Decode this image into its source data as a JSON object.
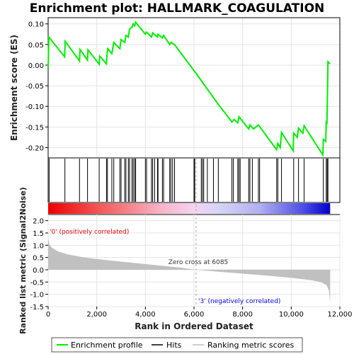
{
  "chart_data": {
    "type": "line",
    "title": "Enrichment plot: HALLMARK_COAGULATION",
    "xlabel": "Rank in Ordered Dataset",
    "xlim": [
      0,
      12000
    ],
    "x_ticks": [
      0,
      2000,
      4000,
      6000,
      8000,
      10000,
      12000
    ],
    "x_tick_labels": [
      "0",
      "2,000",
      "4,000",
      "6,000",
      "8,000",
      "10,000",
      "12,000"
    ],
    "es_panel": {
      "ylabel": "Enrichment score (ES)",
      "ylim": [
        -0.225,
        0.115
      ],
      "y_ticks": [
        -0.2,
        -0.15,
        -0.1,
        -0.05,
        0.0,
        0.05,
        0.1
      ],
      "y_tick_labels": [
        "-0.20",
        "-0.15",
        "-0.10",
        "-0.05",
        "0.00",
        "0.05",
        "0.10"
      ],
      "grid": true,
      "series": [
        {
          "name": "Enrichment profile",
          "color": "#00ee00",
          "points": [
            [
              0,
              -0.005
            ],
            [
              30,
              0.068
            ],
            [
              680,
              0.02
            ],
            [
              700,
              0.058
            ],
            [
              1290,
              0.01
            ],
            [
              1310,
              0.038
            ],
            [
              1620,
              0.012
            ],
            [
              1640,
              0.037
            ],
            [
              2100,
              0.002
            ],
            [
              2120,
              0.022
            ],
            [
              2400,
              0.003
            ],
            [
              2420,
              0.025
            ],
            [
              2450,
              0.04
            ],
            [
              2620,
              0.028
            ],
            [
              2700,
              0.055
            ],
            [
              2950,
              0.04
            ],
            [
              3000,
              0.062
            ],
            [
              3150,
              0.055
            ],
            [
              3200,
              0.072
            ],
            [
              3300,
              0.068
            ],
            [
              3350,
              0.088
            ],
            [
              3450,
              0.092
            ],
            [
              3500,
              0.1
            ],
            [
              3560,
              0.095
            ],
            [
              3600,
              0.104
            ],
            [
              4000,
              0.075
            ],
            [
              4050,
              0.08
            ],
            [
              4250,
              0.068
            ],
            [
              4300,
              0.078
            ],
            [
              4500,
              0.068
            ],
            [
              4520,
              0.075
            ],
            [
              4700,
              0.066
            ],
            [
              4750,
              0.072
            ],
            [
              5000,
              0.05
            ],
            [
              5050,
              0.055
            ],
            [
              5200,
              0.05
            ],
            [
              6085,
              -0.02
            ],
            [
              7000,
              -0.095
            ],
            [
              7560,
              -0.138
            ],
            [
              7650,
              -0.132
            ],
            [
              7800,
              -0.14
            ],
            [
              7850,
              -0.125
            ],
            [
              8250,
              -0.155
            ],
            [
              8300,
              -0.145
            ],
            [
              8450,
              -0.155
            ],
            [
              8650,
              -0.145
            ],
            [
              9400,
              -0.205
            ],
            [
              9450,
              -0.19
            ],
            [
              9550,
              -0.2
            ],
            [
              9600,
              -0.163
            ],
            [
              10080,
              -0.208
            ],
            [
              10100,
              -0.165
            ],
            [
              10250,
              -0.175
            ],
            [
              10300,
              -0.153
            ],
            [
              10480,
              -0.165
            ],
            [
              10530,
              -0.147
            ],
            [
              11300,
              -0.218
            ],
            [
              11320,
              -0.18
            ],
            [
              11420,
              -0.185
            ],
            [
              11440,
              -0.138
            ],
            [
              11470,
              -0.14
            ],
            [
              11500,
              -0.04
            ],
            [
              11510,
              0.008
            ],
            [
              11600,
              0.003
            ]
          ]
        }
      ]
    },
    "hits": [
      40,
      690,
      1290,
      1620,
      2100,
      2400,
      2440,
      2620,
      2700,
      2950,
      3000,
      3150,
      3200,
      3300,
      3350,
      3450,
      3500,
      3560,
      3600,
      4000,
      4050,
      4250,
      4300,
      4380,
      4500,
      4520,
      4700,
      4750,
      5000,
      5050,
      5120,
      5200,
      6000,
      6030,
      6300,
      6350,
      6400,
      6550,
      6800,
      7000,
      7560,
      7620,
      7800,
      7850,
      7900,
      8250,
      8300,
      8400,
      8650,
      8700,
      9400,
      9450,
      9600,
      10100,
      10300,
      10530,
      11320,
      11440,
      11480,
      11510
    ],
    "ranked_metric": {
      "ylabel": "Ranked list metric (Signal2Noise)",
      "ylim": [
        -1.5,
        2.25
      ],
      "y_ticks": [
        -1.5,
        -1.0,
        -0.5,
        0.0,
        0.5,
        1.0,
        1.5,
        2.0
      ],
      "y_tick_labels": [
        "-1.5",
        "-1.0",
        "-0.5",
        "0.0",
        "0.5",
        "1.0",
        "1.5",
        "2.0"
      ],
      "grid": true,
      "profile": [
        [
          0,
          1.3
        ],
        [
          50,
          1.05
        ],
        [
          150,
          0.9
        ],
        [
          400,
          0.75
        ],
        [
          800,
          0.63
        ],
        [
          1500,
          0.5
        ],
        [
          2500,
          0.38
        ],
        [
          3500,
          0.28
        ],
        [
          4500,
          0.18
        ],
        [
          5500,
          0.08
        ],
        [
          6085,
          0.0
        ],
        [
          7000,
          -0.08
        ],
        [
          8000,
          -0.16
        ],
        [
          9000,
          -0.24
        ],
        [
          10000,
          -0.33
        ],
        [
          10800,
          -0.42
        ],
        [
          11200,
          -0.5
        ],
        [
          11450,
          -0.62
        ],
        [
          11550,
          -0.85
        ],
        [
          11600,
          -1.35
        ]
      ],
      "positive_label": "'0' (positively correlated)",
      "negative_label": "'3' (negatively correlated)",
      "zero_cross_label": "Zero cross at 6085",
      "zero_cross": 6085
    },
    "legend": {
      "placement": "bottom",
      "entries": [
        {
          "label": "Enrichment profile",
          "color": "#00ee00"
        },
        {
          "label": "Hits",
          "color": "#000000"
        },
        {
          "label": "Ranking metric scores",
          "color": "#c0c0c0"
        }
      ]
    },
    "colors": {
      "positive": "#ee0000",
      "negative": "#0000ee",
      "metric_fill": "#c0c0c0",
      "grid": "#e4e4e4",
      "zero_line": "#aaaaaa"
    }
  }
}
